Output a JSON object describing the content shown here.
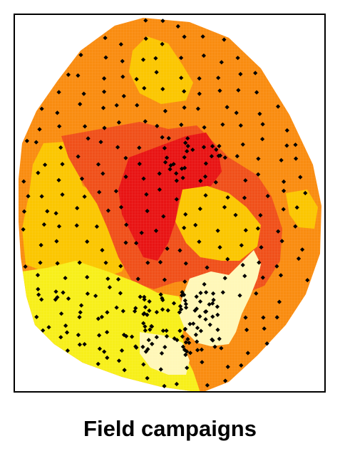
{
  "caption": "Field campaigns",
  "legend_colors": {
    "light_yellow": "#fff7b8",
    "yellow": "#f7ef1a",
    "gold": "#fbc600",
    "orange": "#f98c10",
    "red_orange": "#f0501a",
    "red": "#e81414",
    "frame": "#000000",
    "sample_point": "#000000"
  },
  "layers": [
    "orange-zone",
    "gold-zone",
    "red-zone",
    "yellow-zone",
    "light-yellow-zone",
    "sample-points"
  ]
}
